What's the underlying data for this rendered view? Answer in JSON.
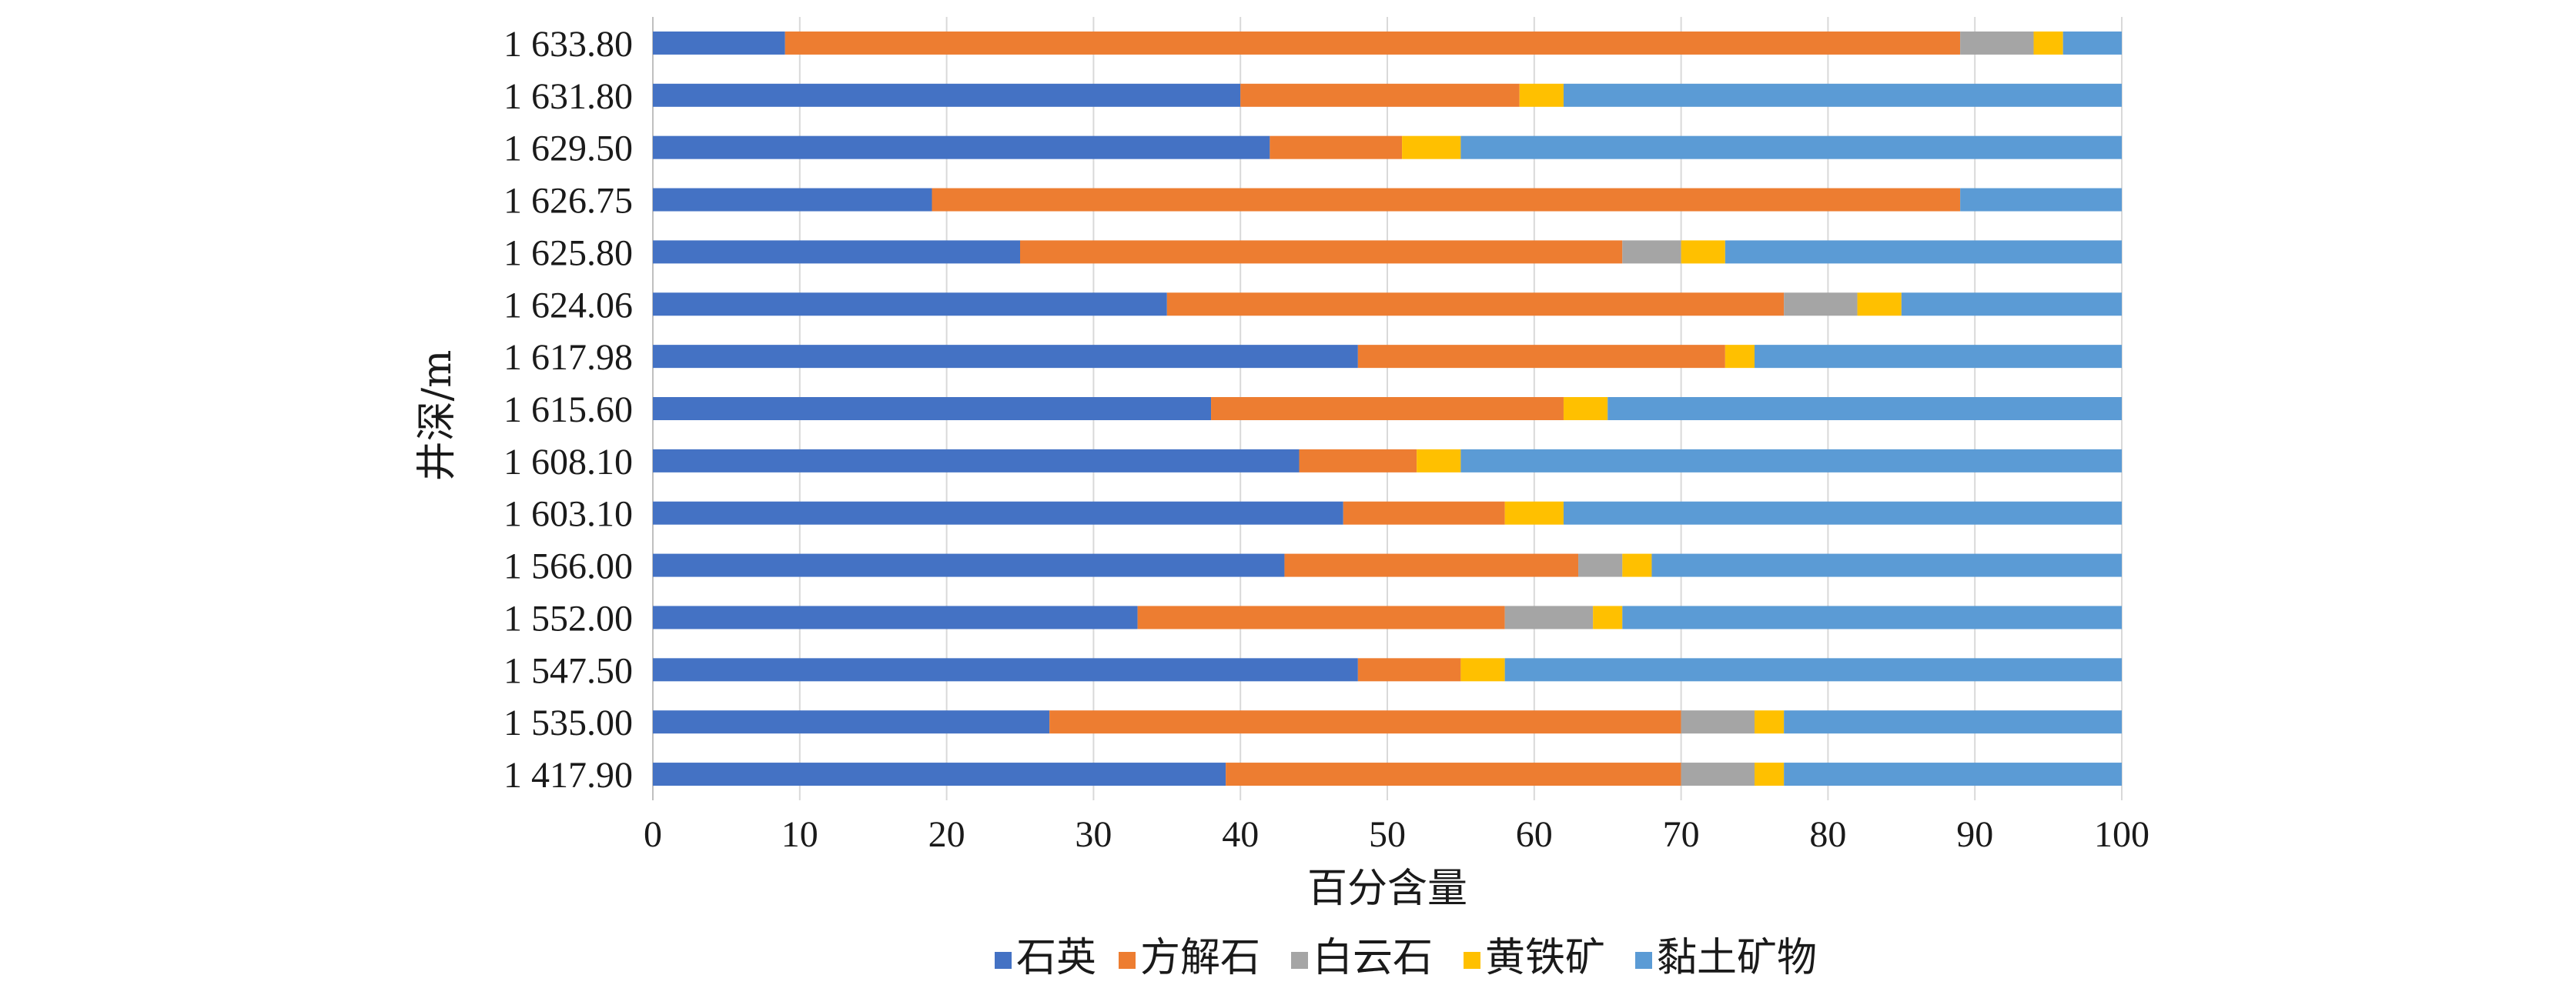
{
  "chart_data": {
    "type": "bar",
    "orientation": "horizontal",
    "stacked": true,
    "categories": [
      "1 633.80",
      "1 631.80",
      "1 629.50",
      "1 626.75",
      "1 625.80",
      "1 624.06",
      "1 617.98",
      "1 615.60",
      "1 608.10",
      "1 603.10",
      "1 566.00",
      "1 552.00",
      "1 547.50",
      "1 535.00",
      "1 417.90"
    ],
    "series": [
      {
        "name": "石英",
        "color": "#4472c4",
        "values": [
          9,
          40,
          42,
          19,
          25,
          35,
          48,
          38,
          44,
          47,
          43,
          33,
          48,
          27,
          39
        ]
      },
      {
        "name": "方解石",
        "color": "#ed7d31",
        "values": [
          80,
          19,
          9,
          70,
          41,
          42,
          25,
          24,
          8,
          11,
          20,
          25,
          7,
          43,
          31
        ]
      },
      {
        "name": "白云石",
        "color": "#a5a5a5",
        "values": [
          5,
          0,
          0,
          0,
          4,
          5,
          0,
          0,
          0,
          0,
          3,
          6,
          0,
          5,
          5
        ]
      },
      {
        "name": "黄铁矿",
        "color": "#ffc000",
        "values": [
          2,
          3,
          4,
          0,
          3,
          3,
          2,
          3,
          3,
          4,
          2,
          2,
          3,
          2,
          2
        ]
      },
      {
        "name": "黏土矿物",
        "color": "#5b9bd5",
        "values": [
          4,
          38,
          45,
          11,
          27,
          15,
          25,
          35,
          45,
          38,
          32,
          34,
          42,
          23,
          23
        ]
      }
    ],
    "xlim": [
      0,
      100
    ],
    "xticks": [
      "0",
      "10",
      "20",
      "30",
      "40",
      "50",
      "60",
      "70",
      "80",
      "90",
      "100"
    ],
    "xlabel": "百分含量",
    "ylabel": "井深/m",
    "legend_position": "bottom"
  }
}
